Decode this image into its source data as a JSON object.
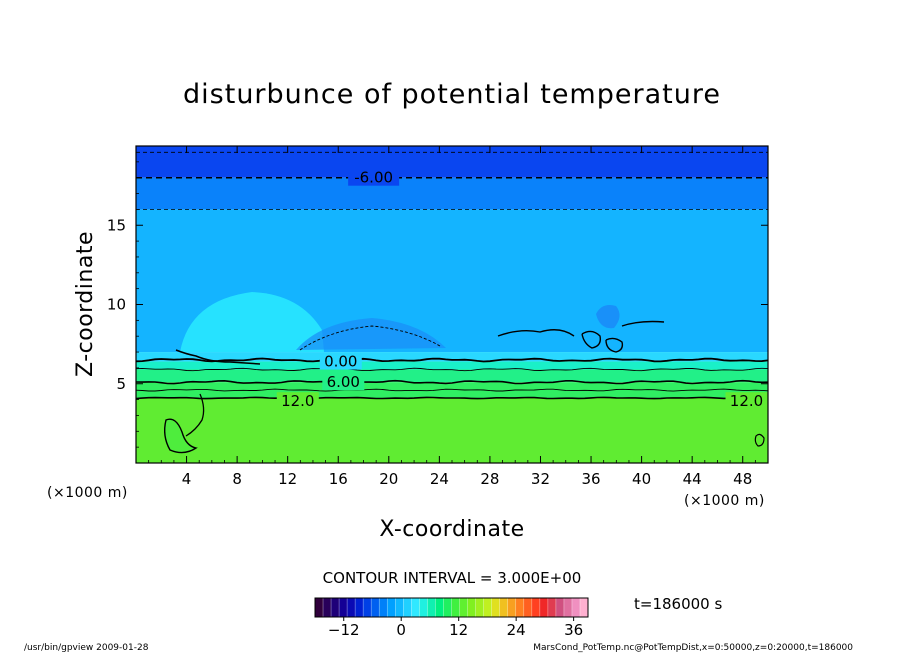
{
  "title": "disturbunce of potential temperature",
  "contour_interval_text": "CONTOUR INTERVAL = 3.000E+00",
  "time_text": "t=186000 s",
  "footer_left": "/usr/bin/gpview   2009-01-28",
  "footer_right": "MarsCond_PotTemp.nc@PotTempDist,x=0:50000,z=0:20000,t=186000",
  "chart_data": {
    "type": "heatmap",
    "title": "disturbunce of potential temperature",
    "xlabel": "X-coordinate",
    "ylabel": "Z-coordinate",
    "x_unit_label": "(×1000 m)",
    "y_unit_label": "(×1000 m)",
    "xlim": [
      0,
      50
    ],
    "ylim": [
      0,
      20
    ],
    "x_ticks": [
      4,
      8,
      12,
      16,
      20,
      24,
      28,
      32,
      36,
      40,
      44,
      48
    ],
    "y_ticks": [
      5,
      10,
      15
    ],
    "contour_interval": 3.0,
    "contour_labels": [
      {
        "text": "-6.00",
        "x": 18.8,
        "z": 18.0,
        "value": -6
      },
      {
        "text": "0.00",
        "x": 16.2,
        "z": 6.4,
        "value": 0
      },
      {
        "text": "6.00",
        "x": 16.4,
        "z": 5.1,
        "value": 6
      },
      {
        "text": "12.0",
        "x": 12.8,
        "z": 3.9,
        "value": 12
      },
      {
        "text": "12.0",
        "x": 48.3,
        "z": 3.9,
        "value": 12
      }
    ],
    "colorbar": {
      "min": -18,
      "max": 39,
      "ticks": [
        -12,
        0,
        12,
        24,
        36
      ],
      "colors": [
        "#30003c",
        "#28005a",
        "#1e0078",
        "#140096",
        "#0a0ab4",
        "#0020d2",
        "#0040e6",
        "#0060f0",
        "#0080f8",
        "#00a0ff",
        "#10b8ff",
        "#20d0ff",
        "#30e8ff",
        "#20f0e0",
        "#10f0b0",
        "#00f080",
        "#20f060",
        "#40f040",
        "#60f030",
        "#80f020",
        "#a0f020",
        "#c0f020",
        "#e0e020",
        "#f0c020",
        "#f8a020",
        "#ff8020",
        "#ff6020",
        "#ff4020",
        "#f02828",
        "#e03c50",
        "#d05080",
        "#e070a0",
        "#f090c0",
        "#ffb0d0"
      ]
    },
    "bands": [
      {
        "z": [
          18.0,
          20.0
        ],
        "value": -7.5,
        "color": "#0a46f0"
      },
      {
        "z": [
          16.0,
          18.0
        ],
        "value": -4.5,
        "color": "#0a82fa"
      },
      {
        "z": [
          7.0,
          16.0
        ],
        "value": -1.5,
        "color": "#14b4ff"
      },
      {
        "z": [
          6.4,
          7.0
        ],
        "value": 1.5,
        "color": "#2ad8ff"
      },
      {
        "z": [
          5.9,
          6.4
        ],
        "value": 3.0,
        "color": "#1af0c8"
      },
      {
        "z": [
          5.1,
          5.9
        ],
        "value": 6.0,
        "color": "#22f088"
      },
      {
        "z": [
          4.1,
          5.1
        ],
        "value": 9.0,
        "color": "#30ee62"
      },
      {
        "z": [
          0.0,
          4.1
        ],
        "value": 13.5,
        "color": "#60ec32"
      }
    ]
  }
}
